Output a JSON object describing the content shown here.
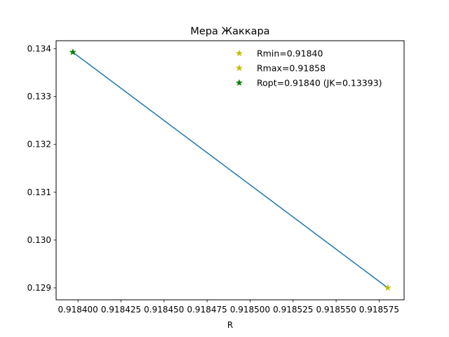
{
  "chart_data": {
    "type": "line",
    "title": "Мера Жаккара",
    "xlabel": "R",
    "ylabel": "",
    "xlim": [
      0.9183873,
      0.9185895
    ],
    "ylim": [
      0.12875,
      0.13417
    ],
    "x_ticks": [
      0.9184,
      0.918425,
      0.91845,
      0.918475,
      0.9185,
      0.918525,
      0.91855,
      0.918575
    ],
    "x_tick_labels": [
      "0.918400",
      "0.918425",
      "0.918450",
      "0.918475",
      "0.918500",
      "0.918525",
      "0.918550",
      "0.918575"
    ],
    "y_ticks": [
      0.129,
      0.13,
      0.131,
      0.132,
      0.133,
      0.134
    ],
    "y_tick_labels": [
      "0.129",
      "0.130",
      "0.131",
      "0.132",
      "0.133",
      "0.134"
    ],
    "grid": false,
    "legend_position": "top-right",
    "series": [
      {
        "x": [
          0.918397,
          0.91858
        ],
        "y": [
          0.13393,
          0.129
        ],
        "color": "#1f77b4"
      }
    ],
    "markers": [
      {
        "label": "Rmin=0.91840",
        "x": 0.918397,
        "y": 0.13393,
        "color": "#bfbf00",
        "marker": "star"
      },
      {
        "label": "Rmax=0.91858",
        "x": 0.91858,
        "y": 0.129,
        "color": "#bfbf00",
        "marker": "star"
      },
      {
        "label": "Ropt=0.91840 (JK=0.13393)",
        "x": 0.918397,
        "y": 0.13393,
        "color": "#008000",
        "marker": "star"
      }
    ]
  }
}
